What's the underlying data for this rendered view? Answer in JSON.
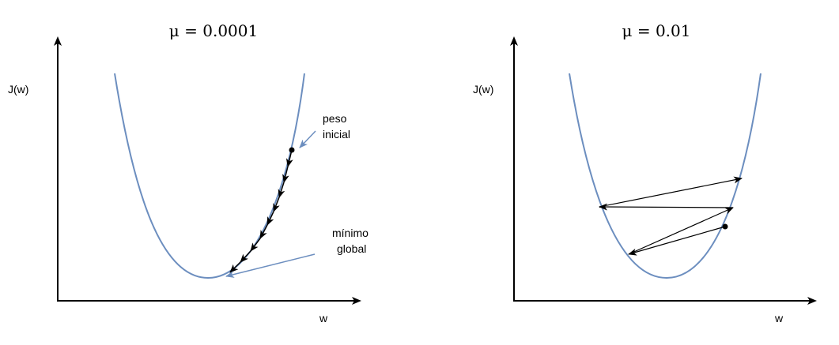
{
  "panels": [
    {
      "title": "μ = 0.0001",
      "ylabel": "J(w)",
      "xlabel": "w",
      "annotations": {
        "start_line1": "peso",
        "start_line2": "inicial",
        "min_line1": "mínimo",
        "min_line2": "global"
      }
    },
    {
      "title": "μ = 0.01",
      "ylabel": "J(w)",
      "xlabel": "w"
    }
  ],
  "colors": {
    "curve": "#6c8ebf",
    "annotation_arrow": "#6c8ebf",
    "axes": "#000000",
    "steps": "#000000"
  }
}
